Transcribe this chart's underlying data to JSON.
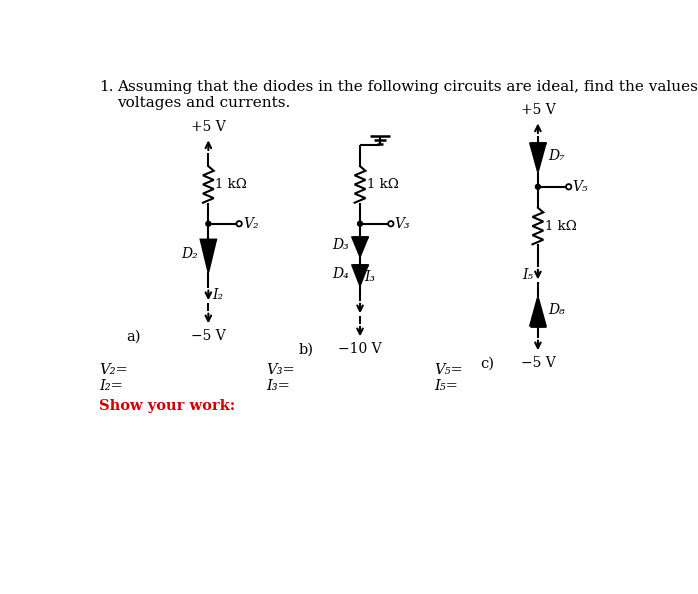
{
  "title_number": "1.",
  "title_text": "Assuming that the diodes in the following circuits are ideal, find the values of the labeled\nvoltages and currents.",
  "title_fontsize": 11,
  "bg_color": "#ffffff",
  "text_color": "#000000",
  "label_a": "a)",
  "label_b": "b)",
  "label_c": "c)",
  "circuit_a": {
    "top_label": "+5 V",
    "bottom_label": "−5 V",
    "resistor_label": "1 kΩ",
    "diode_label": "D₂",
    "voltage_label": "V₂",
    "current_label": "I₂"
  },
  "circuit_b": {
    "bottom_label": "−10 V",
    "resistor_label": "1 kΩ",
    "diode1_label": "D₃",
    "diode2_label": "D₄",
    "voltage_label": "V₃",
    "current_label": "I₃"
  },
  "circuit_c": {
    "top_label": "+5 V",
    "bottom_label": "−5 V",
    "resistor_label": "1 kΩ",
    "diode1_label": "D₇",
    "diode2_label": "D₈",
    "voltage_label": "V₅",
    "current_label": "I₅"
  },
  "answer_labels": [
    "V₂=",
    "I₂=",
    "V₃=",
    "I₃=",
    "V₅=",
    "I₅="
  ],
  "show_work_label": "Show your work:",
  "show_work_color": "#cc0000"
}
